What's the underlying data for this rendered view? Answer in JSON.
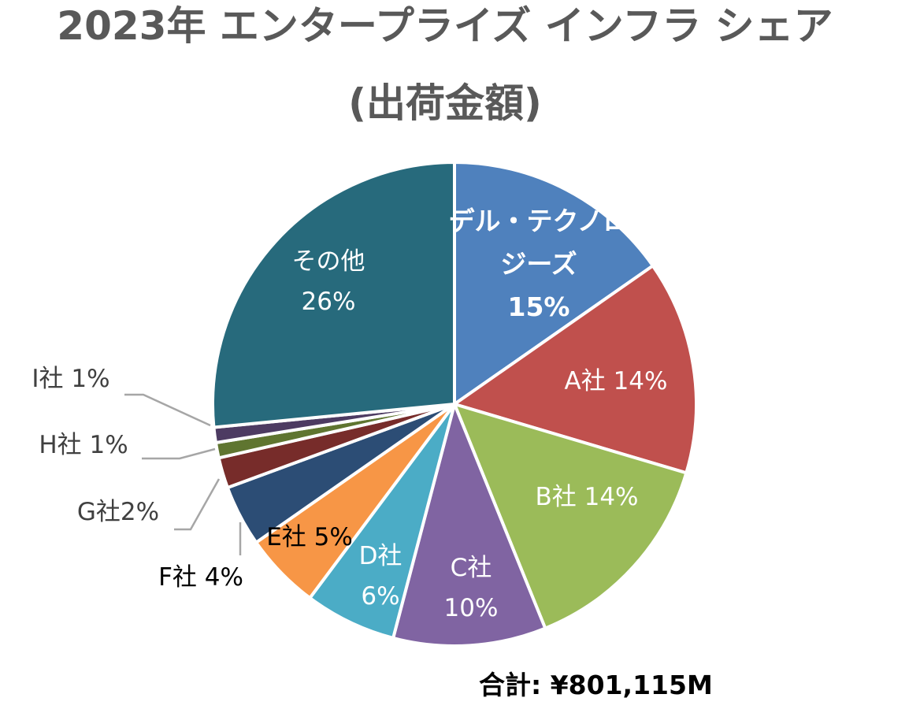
{
  "title": {
    "line1": "2023年 エンタープライズ インフラ シェア",
    "line2": "(出荷金額)"
  },
  "total_label": "合計: ¥801,115M",
  "chart_data": {
    "type": "pie",
    "title": "2023年 エンタープライズ インフラ シェア (出荷金額)",
    "unit": "%",
    "slices": [
      {
        "label_lines": [
          "デル・テクノロ",
          "ジーズ"
        ],
        "value_text": "15%",
        "value": 15,
        "color": "#4F81BD",
        "label_color": "#ffffff",
        "bold": true
      },
      {
        "label_lines": [
          "A社 14%"
        ],
        "value_text": "",
        "value": 14,
        "color": "#C0504D",
        "label_color": "#ffffff"
      },
      {
        "label_lines": [
          "B社 14%"
        ],
        "value_text": "",
        "value": 14,
        "color": "#9BBB59",
        "label_color": "#ffffff"
      },
      {
        "label_lines": [
          "C社"
        ],
        "value_text": "10%",
        "value": 10,
        "color": "#8064A2",
        "label_color": "#ffffff"
      },
      {
        "label_lines": [
          "D社"
        ],
        "value_text": "6%",
        "value": 6,
        "color": "#4BACC6",
        "label_color": "#ffffff"
      },
      {
        "label_lines": [
          "E社 5%"
        ],
        "value_text": "",
        "value": 5,
        "color": "#F79646",
        "label_color": "#000000"
      },
      {
        "label_lines": [
          "F社 4%"
        ],
        "value_text": "",
        "value": 4,
        "color": "#2C4D75",
        "label_color": "#000000"
      },
      {
        "label_lines": [
          "G社2%"
        ],
        "value_text": "",
        "value": 2,
        "color": "#772C2A",
        "label_color": "#404040"
      },
      {
        "label_lines": [
          "H社 1%"
        ],
        "value_text": "",
        "value": 1,
        "color": "#5F7530",
        "label_color": "#404040"
      },
      {
        "label_lines": [
          "I社 1%"
        ],
        "value_text": "",
        "value": 1,
        "color": "#4D3B62",
        "label_color": "#404040"
      },
      {
        "label_lines": [
          "その他"
        ],
        "value_text": "26%",
        "value": 26,
        "color": "#276A7C",
        "label_color": "#ffffff"
      }
    ]
  }
}
